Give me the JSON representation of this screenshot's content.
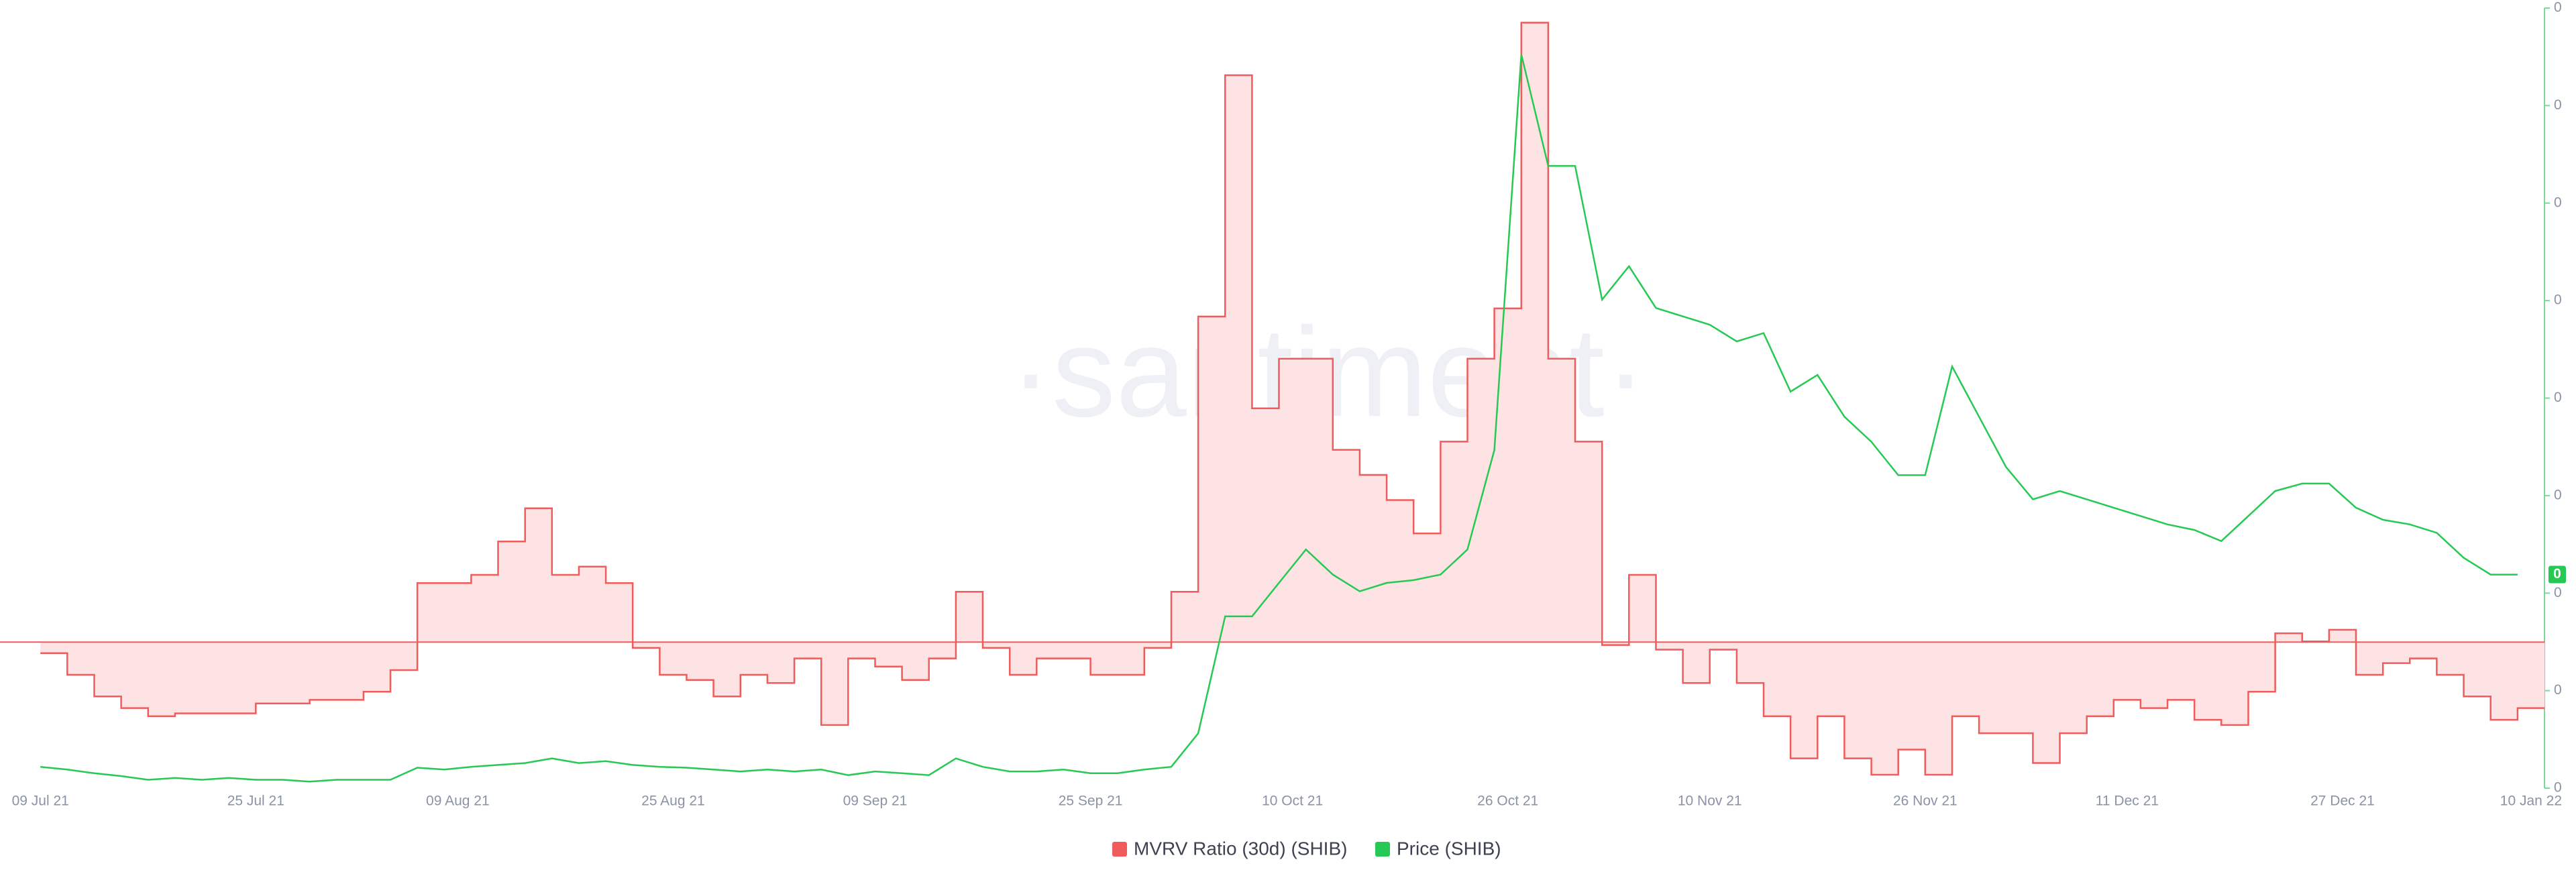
{
  "chart_data": {
    "type": "line",
    "watermark": "·santiment·",
    "x": [
      "2021-07-09",
      "2021-07-11",
      "2021-07-13",
      "2021-07-15",
      "2021-07-17",
      "2021-07-19",
      "2021-07-21",
      "2021-07-23",
      "2021-07-25",
      "2021-07-27",
      "2021-07-29",
      "2021-07-31",
      "2021-08-02",
      "2021-08-04",
      "2021-08-06",
      "2021-08-08",
      "2021-08-10",
      "2021-08-12",
      "2021-08-14",
      "2021-08-16",
      "2021-08-18",
      "2021-08-20",
      "2021-08-22",
      "2021-08-24",
      "2021-08-26",
      "2021-08-28",
      "2021-08-30",
      "2021-09-01",
      "2021-09-03",
      "2021-09-05",
      "2021-09-07",
      "2021-09-09",
      "2021-09-11",
      "2021-09-13",
      "2021-09-15",
      "2021-09-17",
      "2021-09-19",
      "2021-09-21",
      "2021-09-23",
      "2021-09-25",
      "2021-09-27",
      "2021-09-29",
      "2021-10-01",
      "2021-10-03",
      "2021-10-05",
      "2021-10-07",
      "2021-10-09",
      "2021-10-11",
      "2021-10-13",
      "2021-10-15",
      "2021-10-17",
      "2021-10-19",
      "2021-10-21",
      "2021-10-23",
      "2021-10-25",
      "2021-10-27",
      "2021-10-29",
      "2021-10-31",
      "2021-11-02",
      "2021-11-04",
      "2021-11-06",
      "2021-11-08",
      "2021-11-10",
      "2021-11-12",
      "2021-11-14",
      "2021-11-16",
      "2021-11-18",
      "2021-11-20",
      "2021-11-22",
      "2021-11-24",
      "2021-11-26",
      "2021-11-28",
      "2021-11-30",
      "2021-12-02",
      "2021-12-04",
      "2021-12-06",
      "2021-12-08",
      "2021-12-10",
      "2021-12-12",
      "2021-12-14",
      "2021-12-16",
      "2021-12-18",
      "2021-12-20",
      "2021-12-22",
      "2021-12-24",
      "2021-12-26",
      "2021-12-28",
      "2021-12-30",
      "2022-01-01",
      "2022-01-03",
      "2022-01-05",
      "2022-01-07",
      "2022-01-09"
    ],
    "xlim": [
      "2021-07-06",
      "2022-01-11"
    ],
    "xticks": [
      {
        "value": "2021-07-09",
        "label": "09 Jul 21"
      },
      {
        "value": "2021-07-25",
        "label": "25 Jul 21"
      },
      {
        "value": "2021-08-09",
        "label": "09 Aug 21"
      },
      {
        "value": "2021-08-25",
        "label": "25 Aug 21"
      },
      {
        "value": "2021-09-09",
        "label": "09 Sep 21"
      },
      {
        "value": "2021-09-25",
        "label": "25 Sep 21"
      },
      {
        "value": "2021-10-10",
        "label": "10 Oct 21"
      },
      {
        "value": "2021-10-26",
        "label": "26 Oct 21"
      },
      {
        "value": "2021-11-10",
        "label": "10 Nov 21"
      },
      {
        "value": "2021-11-26",
        "label": "26 Nov 21"
      },
      {
        "value": "2021-12-11",
        "label": "11 Dec 21"
      },
      {
        "value": "2021-12-27",
        "label": "27 Dec 21"
      },
      {
        "value": "2022-01-10",
        "label": "10 Jan 22"
      }
    ],
    "ylim": [
      -25,
      107
    ],
    "y2lim": [
      5e-06,
      8.9e-05
    ],
    "y2ticks": [
      {
        "value": 5e-06,
        "label": "0"
      },
      {
        "value": 1.55e-05,
        "label": "0"
      },
      {
        "value": 2.6e-05,
        "label": "0"
      },
      {
        "value": 3.65e-05,
        "label": "0"
      },
      {
        "value": 4.7e-05,
        "label": "0"
      },
      {
        "value": 5.75e-05,
        "label": "0"
      },
      {
        "value": 6.8e-05,
        "label": "0"
      },
      {
        "value": 7.85e-05,
        "label": "0"
      },
      {
        "value": 8.9e-05,
        "label": "0"
      }
    ],
    "last_price_tag": {
      "value": 2.8e-05,
      "label": "0"
    },
    "series": [
      {
        "name": "MVRV Ratio (30d) (SHIB)",
        "color": "#f05b5b",
        "fill": "#fde3e3",
        "step": true,
        "axis": "y",
        "values": [
          -1.9,
          -5.6,
          -9.3,
          -11.3,
          -12.7,
          -12.2,
          -12.2,
          -12.2,
          -10.5,
          -10.5,
          -9.9,
          -9.9,
          -8.5,
          -4.8,
          10.1,
          10.1,
          11.5,
          17.2,
          22.9,
          11.5,
          12.9,
          10.1,
          -1.0,
          -5.6,
          -6.5,
          -9.3,
          -5.6,
          -7.0,
          -2.8,
          -14.2,
          -2.8,
          -4.2,
          -6.5,
          -2.8,
          8.6,
          -1.0,
          -5.6,
          -2.8,
          -2.8,
          -5.6,
          -5.6,
          -1.0,
          8.6,
          55.7,
          97.0,
          40.0,
          48.5,
          48.5,
          32.9,
          28.6,
          24.3,
          18.6,
          34.3,
          48.5,
          57.1,
          106,
          48.5,
          34.3,
          -0.5,
          11.5,
          -1.3,
          -7.0,
          -1.3,
          -7.0,
          -12.7,
          -19.9,
          -12.7,
          -19.9,
          -22.7,
          -18.4,
          -22.7,
          -12.7,
          -15.6,
          -15.6,
          -20.7,
          -15.6,
          -12.7,
          -9.9,
          -11.3,
          -9.9,
          -13.3,
          -14.2,
          -8.5,
          1.5,
          0.1,
          2.1,
          -5.6,
          -3.6,
          -2.8,
          -5.6,
          -9.3,
          -13.3,
          -11.3
        ]
      },
      {
        "name": "Price (SHIB)",
        "color": "#26c953",
        "axis": "y2",
        "values": [
          7.3e-06,
          7e-06,
          6.6e-06,
          6.3e-06,
          5.9e-06,
          6.1e-06,
          5.9e-06,
          6.1e-06,
          5.9e-06,
          5.9e-06,
          5.7e-06,
          5.9e-06,
          5.9e-06,
          5.9e-06,
          7.2e-06,
          7e-06,
          7.3e-06,
          7.5e-06,
          7.7e-06,
          8.2e-06,
          7.7e-06,
          7.9e-06,
          7.5e-06,
          7.3e-06,
          7.2e-06,
          7e-06,
          6.8e-06,
          7e-06,
          6.8e-06,
          7e-06,
          6.4e-06,
          6.8e-06,
          6.6e-06,
          6.4e-06,
          8.2e-06,
          7.3e-06,
          6.8e-06,
          6.8e-06,
          7e-06,
          6.6e-06,
          6.6e-06,
          7e-06,
          7.3e-06,
          1.09e-05,
          2.35e-05,
          2.35e-05,
          2.71e-05,
          3.07e-05,
          2.8e-05,
          2.62e-05,
          2.71e-05,
          2.74e-05,
          2.8e-05,
          3.07e-05,
          4.14e-05,
          8.4e-05,
          7.2e-05,
          7.2e-05,
          5.76e-05,
          6.12e-05,
          5.67e-05,
          5.58e-05,
          5.49e-05,
          5.31e-05,
          5.4e-05,
          4.77e-05,
          4.95e-05,
          4.5e-05,
          4.23e-05,
          3.87e-05,
          3.87e-05,
          5.04e-05,
          4.5e-05,
          3.96e-05,
          3.61e-05,
          3.7e-05,
          3.61e-05,
          3.52e-05,
          3.43e-05,
          3.34e-05,
          3.28e-05,
          3.16e-05,
          3.43e-05,
          3.7e-05,
          3.78e-05,
          3.78e-05,
          3.52e-05,
          3.39e-05,
          3.34e-05,
          3.25e-05,
          2.98e-05,
          2.8e-05,
          2.8e-05
        ]
      }
    ]
  }
}
